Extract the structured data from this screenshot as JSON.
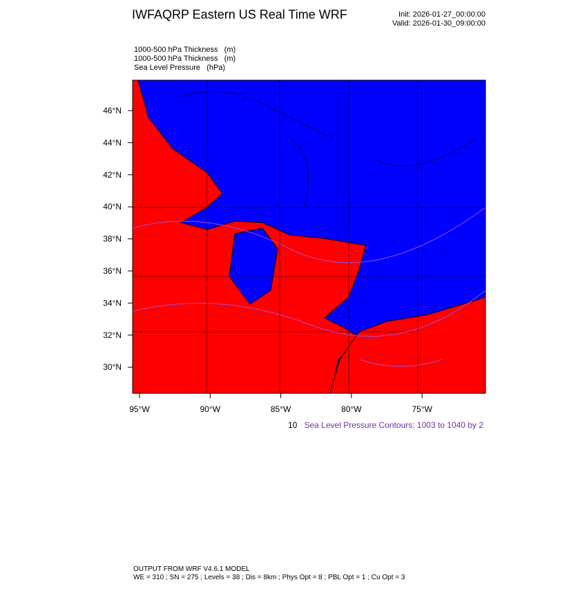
{
  "header": {
    "title": "IWFAQRP Eastern US Real Time WRF",
    "init": "Init: 2026-01-27_00:00:00",
    "valid": "Valid: 2026-01-30_09:00:00"
  },
  "legend": [
    "1000-500 hPa Thickness   (m)",
    "1000-500 hPa Thickness   (m)",
    "Sea Level Pressure   (hPa)"
  ],
  "map": {
    "lat_labels": [
      "46°N",
      "44°N",
      "42°N",
      "40°N",
      "38°N",
      "36°N",
      "34°N",
      "32°N",
      "30°N"
    ],
    "lon_labels": [
      "95°W",
      "90°W",
      "85°W",
      "80°W",
      "75°W"
    ]
  },
  "contour_info": {
    "prefix": "10",
    "text": "Sea Level Pressure Contours: 1003 to 1040 by 2"
  },
  "footer": {
    "line1": "OUTPUT FROM WRF V4.6.1 MODEL",
    "line2": "WE = 310 ; SN = 275 ; Levels = 38 ; Dis = 8km ; Phys Opt = 8 ; PBL Opt = 1 ; Cu Opt = 3"
  }
}
